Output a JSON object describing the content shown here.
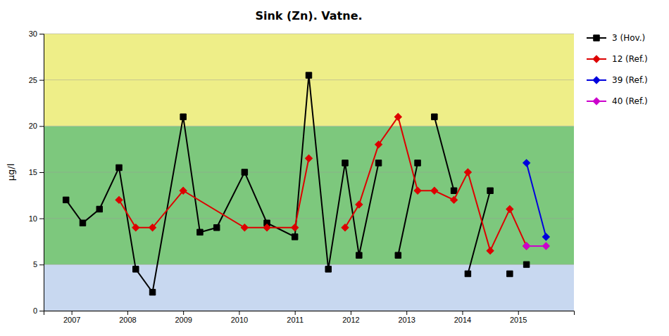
{
  "chart_data": {
    "type": "line",
    "title": "Sink (Zn). Vatne.",
    "ylabel": "µg/l",
    "xlim": [
      2006.5,
      2016.0
    ],
    "xticks": [
      2007,
      2008,
      2009,
      2010,
      2011,
      2012,
      2013,
      2014,
      2015
    ],
    "ylim": [
      0,
      30
    ],
    "yticks": [
      0,
      5,
      10,
      15,
      20,
      25,
      30
    ],
    "grid": true,
    "legend": "right",
    "zones": [
      {
        "from": 0,
        "to": 5,
        "color": "#c8d8f0"
      },
      {
        "from": 5,
        "to": 20,
        "color": "#7dc87d"
      },
      {
        "from": 20,
        "to": 30,
        "color": "#eeee88"
      }
    ],
    "series": [
      {
        "name": "3 (Hov.)",
        "color": "#000000",
        "marker": "square",
        "segments": [
          {
            "x": [
              2006.9,
              2007.2,
              2007.5,
              2007.85,
              2008.15,
              2008.45,
              2009.0,
              2009.3,
              2009.6,
              2010.1,
              2010.5,
              2011.0,
              2011.25,
              2011.6,
              2011.9,
              2012.15,
              2012.5
            ],
            "values": [
              12,
              9.5,
              11,
              15.5,
              4.5,
              2,
              21,
              8.5,
              9,
              15,
              9.5,
              8,
              25.5,
              4.5,
              16,
              6,
              16
            ]
          },
          {
            "x": [
              2012.85,
              2013.2
            ],
            "values": [
              6,
              16
            ]
          },
          {
            "x": [
              2013.5,
              2013.85
            ],
            "values": [
              21,
              13
            ]
          },
          {
            "x": [
              2014.1,
              2014.5
            ],
            "values": [
              4,
              13
            ]
          },
          {
            "x": [
              2014.85
            ],
            "values": [
              4
            ]
          },
          {
            "x": [
              2015.15
            ],
            "values": [
              5
            ]
          }
        ]
      },
      {
        "name": "12 (Ref.)",
        "color": "#dd0000",
        "marker": "diamond",
        "segments": [
          {
            "x": [
              2007.85,
              2008.15,
              2008.45,
              2009.0,
              2010.1,
              2010.5,
              2011.0,
              2011.25
            ],
            "values": [
              12,
              9,
              9,
              13,
              9,
              9,
              9,
              16.5
            ]
          },
          {
            "x": [
              2011.9,
              2012.15,
              2012.5,
              2012.85,
              2013.2,
              2013.5,
              2013.85,
              2014.1,
              2014.5,
              2014.85,
              2015.15,
              2015.5
            ],
            "values": [
              9,
              11.5,
              18,
              21,
              13,
              13,
              12,
              15,
              6.5,
              11,
              7,
              null
            ]
          }
        ]
      },
      {
        "name": "39 (Ref.)",
        "color": "#0000dd",
        "marker": "diamond",
        "segments": [
          {
            "x": [
              2015.15,
              2015.5
            ],
            "values": [
              16,
              8
            ]
          }
        ]
      },
      {
        "name": "40 (Ref.)",
        "color": "#cc00cc",
        "marker": "diamond",
        "segments": [
          {
            "x": [
              2015.15,
              2015.5
            ],
            "values": [
              7,
              7
            ]
          }
        ]
      }
    ]
  }
}
